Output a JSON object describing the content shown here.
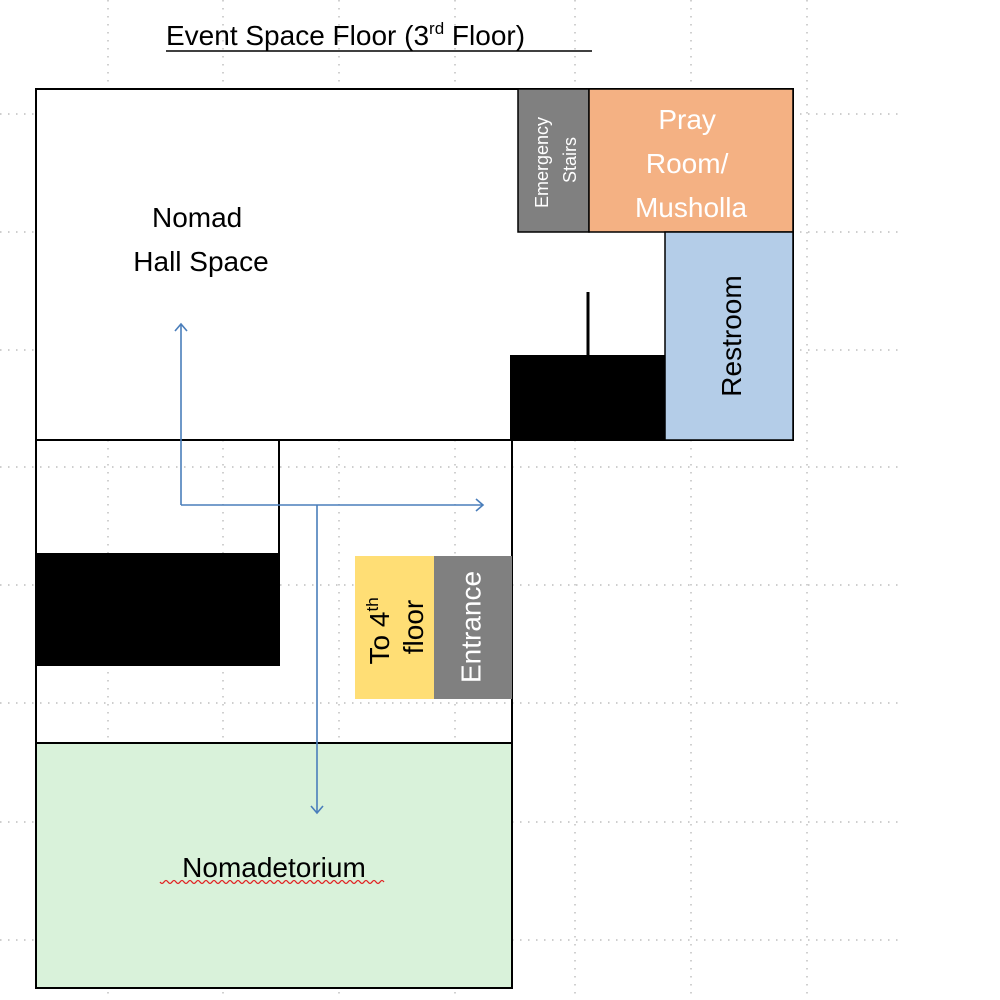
{
  "title": {
    "main": "Event Space Floor (3",
    "sup": "rd",
    "end": " Floor)"
  },
  "rooms": {
    "nomad_hall": {
      "line1": "Nomad",
      "line2": "Hall Space"
    },
    "emergency_stairs": {
      "line1": "Emergency",
      "line2": "Stairs"
    },
    "pray_room": {
      "line1": "Pray",
      "line2": "Room/",
      "line3": "Musholla"
    },
    "restroom": {
      "label": "Restroom"
    },
    "to_4th_floor": {
      "line1_main": "To 4",
      "line1_sup": "th",
      "line2": "floor"
    },
    "entrance": {
      "label": "Entrance"
    },
    "nomadetorium": {
      "label": "Nomadetorium"
    }
  },
  "colors": {
    "pray_room": "#f4b183",
    "restroom": "#b4cde8",
    "stairs": "#808080",
    "to_4th_floor": "#ffde75",
    "entrance": "#808080",
    "nomadetorium": "#d9f2da",
    "arrow": "#4a7ebb",
    "wall": "#000000"
  }
}
